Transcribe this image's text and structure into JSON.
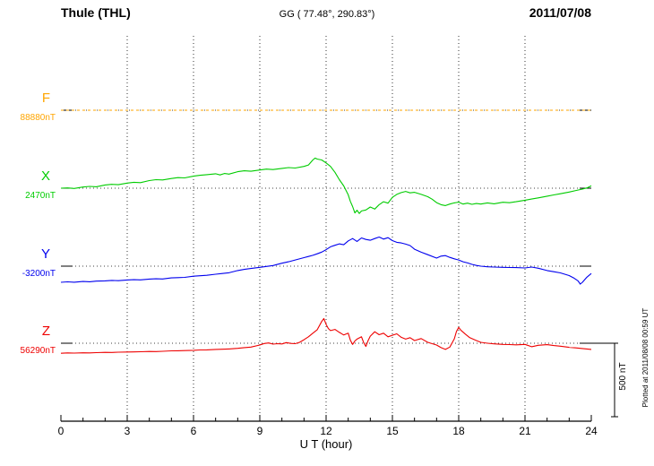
{
  "header": {
    "station": "Thule (THL)",
    "coordinates": "GG ( 77.48°, 290.83°)",
    "date": "2011/07/08"
  },
  "chart_data": {
    "type": "line",
    "title": "Thule (THL)",
    "subtitle_coordinates": "GG ( 77.48°, 290.83°)",
    "date": "2011/07/08",
    "xlabel": "U T (hour)",
    "xlim": [
      0,
      24
    ],
    "x_major_ticks": [
      0,
      3,
      6,
      9,
      12,
      15,
      18,
      21,
      24
    ],
    "x_minor_tick_step_hours": 1,
    "grid": "dotted vertical lines every 3 hours; dotted horizontal baseline per component with solid end segments",
    "legend_position": "left baseline labels",
    "background": "#ffffff",
    "scale_bar": {
      "label": "500 nT",
      "span_nT": 500
    },
    "plotted_note": "Plotted at 2011/08/08 00:59 UT",
    "unit_note": "series points are [hour UT, offset in nT from the labeled baseline value]",
    "series": [
      {
        "name": "F",
        "baseline_label": "88880nT",
        "baseline_value_nT": 88880,
        "color": "#ffa500",
        "style": "dotted",
        "points_hour_offsetnT": [
          [
            0,
            0
          ],
          [
            24,
            0
          ]
        ]
      },
      {
        "name": "X",
        "baseline_label": "2470nT",
        "baseline_value_nT": 2470,
        "color": "#00cc00",
        "style": "solid",
        "points_hour_offsetnT": [
          [
            0,
            0
          ],
          [
            0.3,
            2
          ],
          [
            0.6,
            -2
          ],
          [
            1,
            8
          ],
          [
            1.3,
            12
          ],
          [
            1.6,
            10
          ],
          [
            2,
            22
          ],
          [
            2.3,
            26
          ],
          [
            2.6,
            24
          ],
          [
            3,
            35
          ],
          [
            3.3,
            40
          ],
          [
            3.6,
            38
          ],
          [
            4,
            52
          ],
          [
            4.3,
            58
          ],
          [
            4.6,
            56
          ],
          [
            5,
            66
          ],
          [
            5.3,
            72
          ],
          [
            5.6,
            70
          ],
          [
            6,
            82
          ],
          [
            6.3,
            88
          ],
          [
            6.6,
            92
          ],
          [
            7,
            98
          ],
          [
            7.2,
            90
          ],
          [
            7.4,
            100
          ],
          [
            7.6,
            96
          ],
          [
            8,
            112
          ],
          [
            8.3,
            118
          ],
          [
            8.6,
            115
          ],
          [
            9,
            124
          ],
          [
            9.3,
            130
          ],
          [
            9.6,
            127
          ],
          [
            10,
            135
          ],
          [
            10.3,
            140
          ],
          [
            10.6,
            137
          ],
          [
            11,
            148
          ],
          [
            11.2,
            158
          ],
          [
            11.4,
            192
          ],
          [
            11.5,
            205
          ],
          [
            11.6,
            198
          ],
          [
            11.8,
            192
          ],
          [
            12,
            172
          ],
          [
            12.2,
            148
          ],
          [
            12.4,
            108
          ],
          [
            12.6,
            58
          ],
          [
            12.8,
            15
          ],
          [
            13,
            -45
          ],
          [
            13.1,
            -90
          ],
          [
            13.2,
            -125
          ],
          [
            13.3,
            -168
          ],
          [
            13.4,
            -150
          ],
          [
            13.5,
            -172
          ],
          [
            13.6,
            -155
          ],
          [
            13.8,
            -148
          ],
          [
            14,
            -128
          ],
          [
            14.2,
            -142
          ],
          [
            14.4,
            -112
          ],
          [
            14.6,
            -92
          ],
          [
            14.8,
            -102
          ],
          [
            15,
            -62
          ],
          [
            15.2,
            -42
          ],
          [
            15.4,
            -30
          ],
          [
            15.6,
            -22
          ],
          [
            15.8,
            -32
          ],
          [
            16,
            -28
          ],
          [
            16.3,
            -42
          ],
          [
            16.6,
            -58
          ],
          [
            16.8,
            -75
          ],
          [
            17,
            -98
          ],
          [
            17.2,
            -112
          ],
          [
            17.4,
            -118
          ],
          [
            17.6,
            -108
          ],
          [
            17.8,
            -100
          ],
          [
            18,
            -95
          ],
          [
            18.2,
            -108
          ],
          [
            18.4,
            -102
          ],
          [
            18.6,
            -110
          ],
          [
            18.8,
            -104
          ],
          [
            19,
            -108
          ],
          [
            19.3,
            -100
          ],
          [
            19.6,
            -106
          ],
          [
            20,
            -96
          ],
          [
            20.3,
            -99
          ],
          [
            20.6,
            -92
          ],
          [
            21,
            -82
          ],
          [
            21.3,
            -74
          ],
          [
            21.6,
            -66
          ],
          [
            22,
            -54
          ],
          [
            22.3,
            -46
          ],
          [
            22.6,
            -38
          ],
          [
            23,
            -26
          ],
          [
            23.3,
            -16
          ],
          [
            23.6,
            -6
          ],
          [
            23.8,
            2
          ],
          [
            24,
            16
          ]
        ]
      },
      {
        "name": "Y",
        "baseline_label": "-3200nT",
        "baseline_value_nT": -3200,
        "color": "#0000ee",
        "style": "solid",
        "points_hour_offsetnT": [
          [
            0,
            -110
          ],
          [
            0.3,
            -107
          ],
          [
            0.6,
            -109
          ],
          [
            1,
            -104
          ],
          [
            1.3,
            -106
          ],
          [
            1.6,
            -102
          ],
          [
            2,
            -100
          ],
          [
            2.3,
            -97
          ],
          [
            2.6,
            -99
          ],
          [
            3,
            -94
          ],
          [
            3.3,
            -92
          ],
          [
            3.6,
            -93
          ],
          [
            4,
            -88
          ],
          [
            4.3,
            -86
          ],
          [
            4.6,
            -87
          ],
          [
            5,
            -80
          ],
          [
            5.3,
            -78
          ],
          [
            5.6,
            -76
          ],
          [
            6,
            -68
          ],
          [
            6.3,
            -65
          ],
          [
            6.6,
            -62
          ],
          [
            7,
            -55
          ],
          [
            7.3,
            -50
          ],
          [
            7.6,
            -45
          ],
          [
            8,
            -30
          ],
          [
            8.3,
            -22
          ],
          [
            8.6,
            -16
          ],
          [
            9,
            -8
          ],
          [
            9.3,
            -2
          ],
          [
            9.6,
            4
          ],
          [
            10,
            20
          ],
          [
            10.3,
            30
          ],
          [
            10.6,
            42
          ],
          [
            11,
            58
          ],
          [
            11.2,
            66
          ],
          [
            11.4,
            74
          ],
          [
            11.6,
            84
          ],
          [
            11.8,
            96
          ],
          [
            12,
            112
          ],
          [
            12.2,
            132
          ],
          [
            12.4,
            142
          ],
          [
            12.6,
            152
          ],
          [
            12.8,
            146
          ],
          [
            13,
            172
          ],
          [
            13.2,
            188
          ],
          [
            13.4,
            168
          ],
          [
            13.6,
            192
          ],
          [
            13.8,
            182
          ],
          [
            14,
            176
          ],
          [
            14.2,
            188
          ],
          [
            14.4,
            198
          ],
          [
            14.6,
            184
          ],
          [
            14.8,
            194
          ],
          [
            15,
            174
          ],
          [
            15.2,
            162
          ],
          [
            15.4,
            158
          ],
          [
            15.6,
            150
          ],
          [
            15.8,
            140
          ],
          [
            16,
            115
          ],
          [
            16.3,
            95
          ],
          [
            16.6,
            78
          ],
          [
            17,
            55
          ],
          [
            17.2,
            68
          ],
          [
            17.4,
            72
          ],
          [
            17.6,
            60
          ],
          [
            17.8,
            50
          ],
          [
            18,
            42
          ],
          [
            18.2,
            30
          ],
          [
            18.4,
            22
          ],
          [
            18.6,
            12
          ],
          [
            18.8,
            5
          ],
          [
            19,
            0
          ],
          [
            19.3,
            -4
          ],
          [
            19.6,
            -6
          ],
          [
            20,
            -8
          ],
          [
            20.3,
            -9
          ],
          [
            20.6,
            -10
          ],
          [
            21,
            -12
          ],
          [
            21.3,
            -6
          ],
          [
            21.6,
            -14
          ],
          [
            22,
            -30
          ],
          [
            22.3,
            -38
          ],
          [
            22.6,
            -46
          ],
          [
            23,
            -64
          ],
          [
            23.2,
            -80
          ],
          [
            23.4,
            -100
          ],
          [
            23.5,
            -122
          ],
          [
            23.6,
            -110
          ],
          [
            23.7,
            -92
          ],
          [
            23.8,
            -75
          ],
          [
            24,
            -50
          ]
        ]
      },
      {
        "name": "Z",
        "baseline_label": "56290nT",
        "baseline_value_nT": 56290,
        "color": "#ee0000",
        "style": "solid",
        "points_hour_offsetnT": [
          [
            0,
            -68
          ],
          [
            0.3,
            -66
          ],
          [
            0.6,
            -67
          ],
          [
            1,
            -65
          ],
          [
            1.3,
            -66
          ],
          [
            1.6,
            -64
          ],
          [
            2,
            -62
          ],
          [
            2.3,
            -63
          ],
          [
            2.6,
            -61
          ],
          [
            3,
            -60
          ],
          [
            3.3,
            -59
          ],
          [
            3.6,
            -58
          ],
          [
            4,
            -56
          ],
          [
            4.3,
            -57
          ],
          [
            4.6,
            -55
          ],
          [
            5,
            -52
          ],
          [
            5.3,
            -51
          ],
          [
            5.6,
            -50
          ],
          [
            6,
            -48
          ],
          [
            6.3,
            -46
          ],
          [
            6.6,
            -45
          ],
          [
            7,
            -42
          ],
          [
            7.3,
            -41
          ],
          [
            7.6,
            -39
          ],
          [
            8,
            -35
          ],
          [
            8.3,
            -30
          ],
          [
            8.6,
            -26
          ],
          [
            9,
            -12
          ],
          [
            9.2,
            -2
          ],
          [
            9.4,
            2
          ],
          [
            9.6,
            -6
          ],
          [
            9.8,
            -3
          ],
          [
            10,
            -5
          ],
          [
            10.2,
            4
          ],
          [
            10.4,
            -1
          ],
          [
            10.6,
            -3
          ],
          [
            10.8,
            6
          ],
          [
            11,
            24
          ],
          [
            11.2,
            44
          ],
          [
            11.4,
            68
          ],
          [
            11.6,
            92
          ],
          [
            11.8,
            148
          ],
          [
            11.9,
            168
          ],
          [
            12,
            128
          ],
          [
            12.1,
            100
          ],
          [
            12.2,
            86
          ],
          [
            12.4,
            94
          ],
          [
            12.6,
            74
          ],
          [
            12.8,
            56
          ],
          [
            13,
            68
          ],
          [
            13.1,
            20
          ],
          [
            13.2,
            -8
          ],
          [
            13.3,
            15
          ],
          [
            13.4,
            28
          ],
          [
            13.6,
            44
          ],
          [
            13.7,
            5
          ],
          [
            13.8,
            -22
          ],
          [
            13.9,
            18
          ],
          [
            14,
            48
          ],
          [
            14.2,
            78
          ],
          [
            14.4,
            58
          ],
          [
            14.6,
            68
          ],
          [
            14.8,
            44
          ],
          [
            15,
            54
          ],
          [
            15.2,
            64
          ],
          [
            15.4,
            40
          ],
          [
            15.6,
            28
          ],
          [
            15.8,
            38
          ],
          [
            16,
            18
          ],
          [
            16.3,
            32
          ],
          [
            16.6,
            6
          ],
          [
            17,
            -12
          ],
          [
            17.2,
            -30
          ],
          [
            17.4,
            -42
          ],
          [
            17.6,
            -26
          ],
          [
            17.8,
            30
          ],
          [
            17.9,
            80
          ],
          [
            18,
            108
          ],
          [
            18.1,
            88
          ],
          [
            18.3,
            62
          ],
          [
            18.5,
            38
          ],
          [
            18.8,
            18
          ],
          [
            19,
            6
          ],
          [
            19.3,
            0
          ],
          [
            19.6,
            -4
          ],
          [
            20,
            -8
          ],
          [
            20.3,
            -9
          ],
          [
            20.6,
            -11
          ],
          [
            21,
            -8
          ],
          [
            21.3,
            -24
          ],
          [
            21.6,
            -14
          ],
          [
            22,
            -10
          ],
          [
            22.3,
            -16
          ],
          [
            22.6,
            -20
          ],
          [
            23,
            -28
          ],
          [
            23.3,
            -32
          ],
          [
            23.6,
            -36
          ],
          [
            24,
            -42
          ]
        ]
      }
    ]
  }
}
